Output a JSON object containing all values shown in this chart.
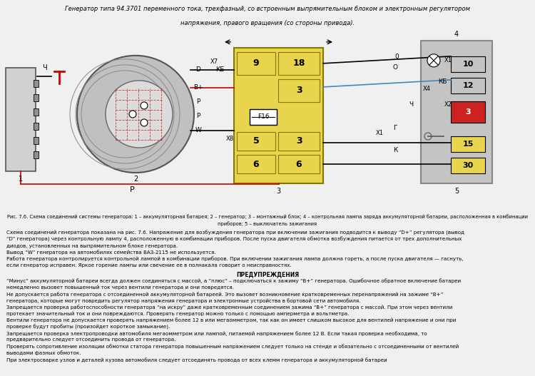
{
  "title_line1": "Генератор типа 94.3701 переменного тока, трехфазный, со встроенным выпрямительным блоком и электронным регулятором",
  "title_line2": "напряжения, правого вращения (со стороны привода).",
  "bg_color": "#f0f0f0",
  "fig_caption_1": "Рис. 7.6. Схема соединений системы генератора: 1 – аккумуляторная батарея; 2 – генератор; 3 – монтажный блок; 4 – контрольная лампа заряда аккумуляторной батареи, расположенная в комбинации",
  "fig_caption_2": "приборов; 5 – выключатель зажигания",
  "body_text": [
    "Схема соединений генератора показана на рис. 7.6. Напряжение для возбуждения генератора при включении зажигания подводится к выводу “D+” регулятора (вывод",
    "“D” генератора) через контрольную лампу 4, расположенную в комбинации приборов. После пуска двигателя обмотка возбуждения питается от трех дополнительных",
    "диодов, установленных на выпрямительном блоке генератора.",
    "Вывод “W” генератора на автомобилях семейства ВАЗ-2115 не используется.",
    "Работа генератора контролируется контрольной лампой в комбинации приборов. При включении зажигания лампа должна гореть, а после пуска двигателя — гаснуть,",
    "если генератор исправен. Яркое горение лампы или свечение ее в полнакала говорит о неисправностях."
  ],
  "warning_title": "ПРЕДУПРЕЖДЕНИЯ",
  "warning_lines": [
    "“Минус” аккумуляторной батареи всегда должен соединяться с массой, а “плюс” – подключаться к зажиму “B+” генератора. Ошибочное обратное включение батареи",
    "немедленно вызовет повышенный ток через вентили генератора и они повредятся.",
    "Не допускается работа генератора с отсоединенной аккумуляторной батареей. Это вызовет возникновение кратковременных перенапряжений на зажиме “B+”",
    "генератора, которые могут повредить регулятор напряжения генератора и электронные устройства в бортовой сети автомобиля.",
    "Запрещается проверка работоспособности генератора “на искру” даже кратковременным соединением зажима “B+” генератора с массой. При этом через вентили",
    "протекает значительный ток и они повреждаются. Проверять генератор можно только с помощью амперметра и вольтметра.",
    "Вентили генератора не допускается проверять напряжением более 12 в или мегаомметром, так как он имеет слишком высокое для вентилей напряжение и они при",
    "проверке будут пробиты (произойдет короткое замыкание).",
    "Запрещается проверка электропроводки автомобиля мегаомметром или лампой, питаемой напряжением более 12 В. Если такая проверка необходима, то",
    "предварительно следует отсоединить провода от генератора.",
    "Проверять сопротивление изоляции обмотки статора генератора повышенным напряжением следует только на стенде и обязательно с отсоединенными от вентилей",
    "выводами фазных обмоток.",
    "При электросварке узлов и деталей кузова автомобиля следует отсоединять провода от всех клемм генератора и аккумуляторной батареи"
  ],
  "yellow_color": "#e8d44d",
  "red_color": "#cc0000"
}
